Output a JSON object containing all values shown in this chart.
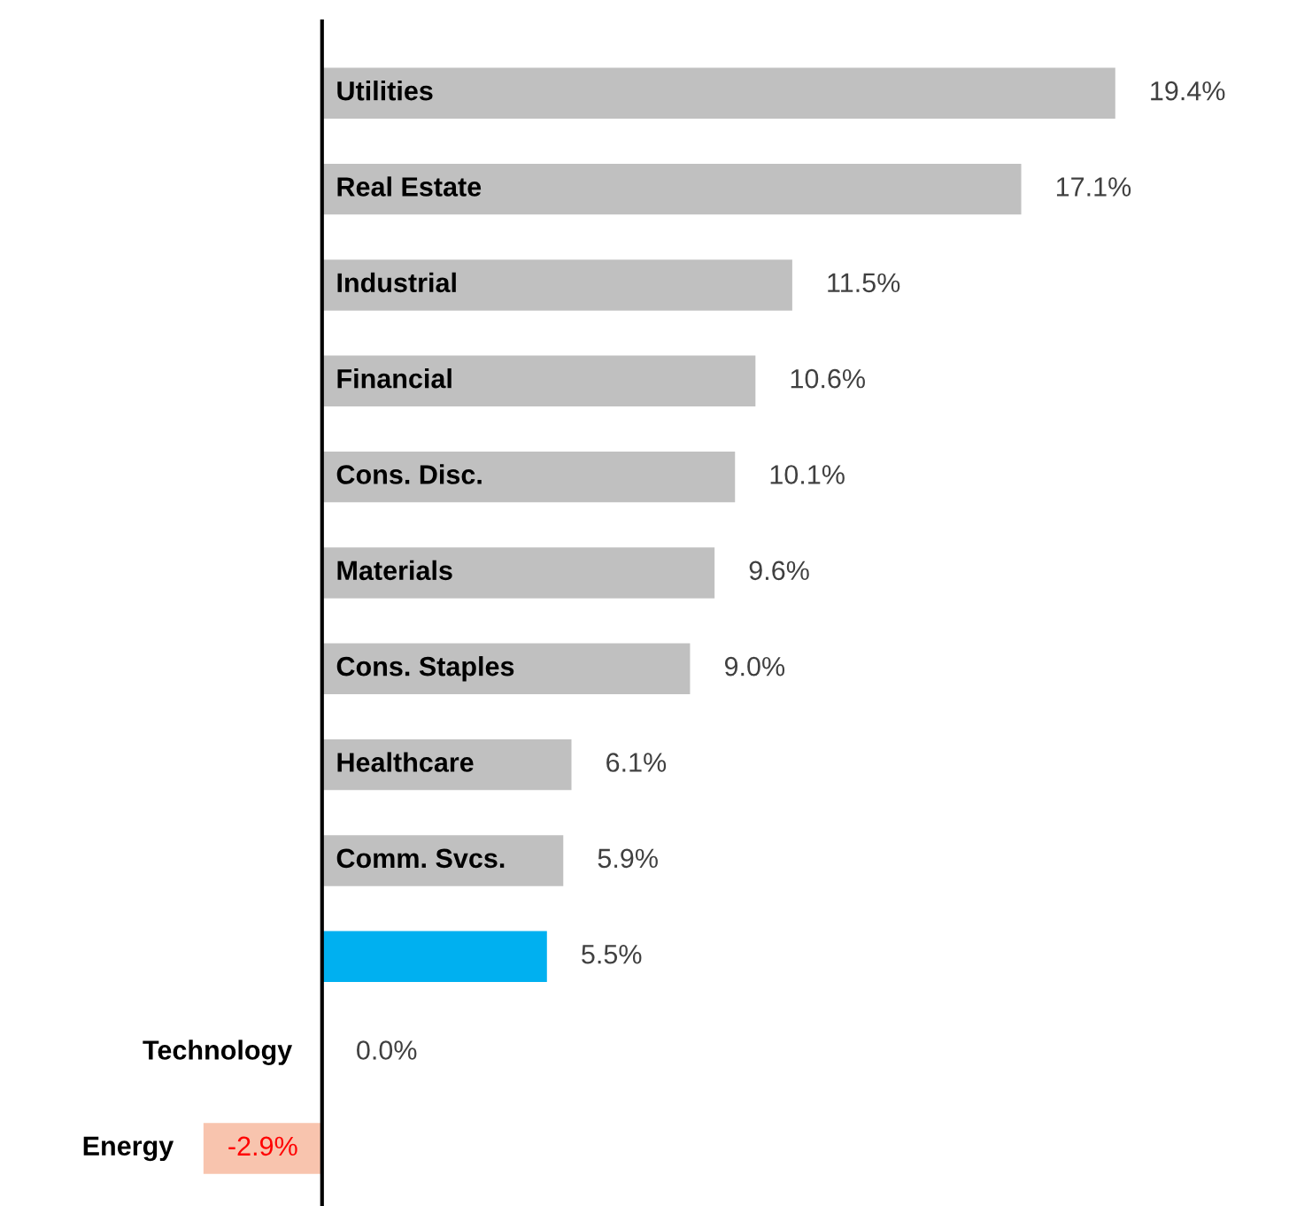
{
  "chart_data": {
    "type": "bar",
    "orientation": "horizontal",
    "categories": [
      "Utilities",
      "Real Estate",
      "Industrial",
      "Financial",
      "Cons. Disc.",
      "Materials",
      "Cons. Staples",
      "Healthcare",
      "Comm. Svcs.",
      null,
      "Technology",
      "Energy"
    ],
    "values": [
      19.4,
      17.1,
      11.5,
      10.6,
      10.1,
      9.6,
      9.0,
      6.1,
      5.9,
      5.5,
      0.0,
      -2.9
    ],
    "colors": [
      "#c0c0c0",
      "#c0c0c0",
      "#c0c0c0",
      "#c0c0c0",
      "#c0c0c0",
      "#c0c0c0",
      "#c0c0c0",
      "#c0c0c0",
      "#c0c0c0",
      "#00b0f0",
      "#c0c0c0",
      "#f8c4ae"
    ],
    "value_labels": [
      "19.4%",
      "17.1%",
      "11.5%",
      "10.6%",
      "10.1%",
      "9.6%",
      "9.0%",
      "6.1%",
      "5.9%",
      "5.5%",
      "0.0%",
      "-2.9%"
    ],
    "legend": false
  }
}
